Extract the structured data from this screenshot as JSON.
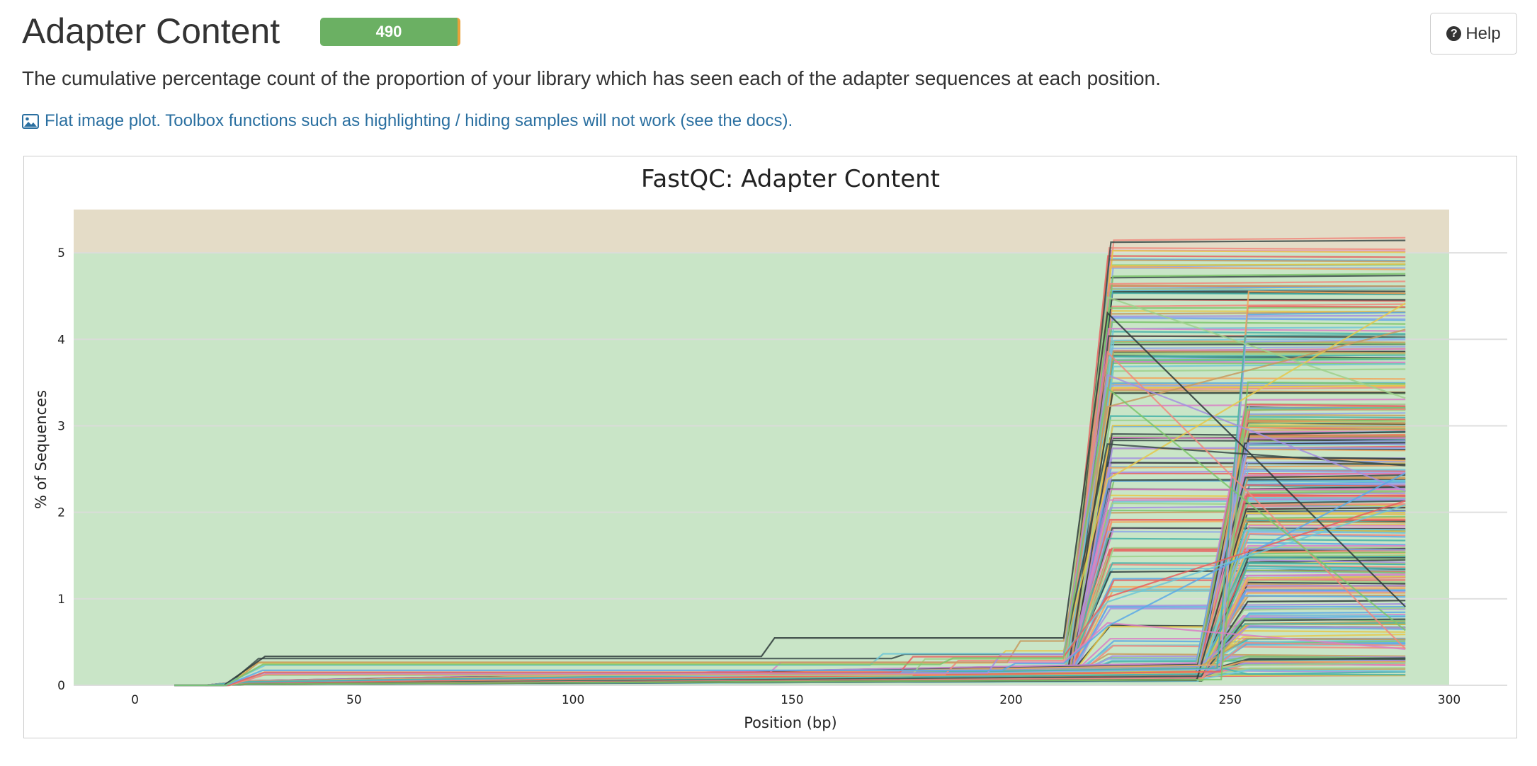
{
  "header": {
    "title": "Adapter Content",
    "badge_count": "490",
    "help_label": "Help"
  },
  "description": "The cumulative percentage count of the proportion of your library which has seen each of the adapter sequences at each position.",
  "flat_link_text": "Flat image plot. Toolbox functions such as highlighting / hiding samples will not work (see the docs).",
  "colors": {
    "accent_link": "#2a6fa0",
    "badge_green": "#6bb063",
    "badge_warn": "#e8a23a",
    "pass_zone": "#c9e5c7",
    "warn_zone": "#e4dcc7"
  },
  "chart_data": {
    "type": "line",
    "title": "FastQC: Adapter Content",
    "xlabel": "Position (bp)",
    "ylabel": "% of Sequences",
    "xlim": [
      -14,
      300
    ],
    "ylim": [
      0,
      5.5
    ],
    "xticks": [
      0,
      50,
      100,
      150,
      200,
      250,
      300
    ],
    "yticks": [
      0,
      1,
      2,
      3,
      4,
      5
    ],
    "grid": true,
    "legend": "none",
    "background_bands": [
      {
        "from": 0,
        "to": 5,
        "color": "#c9e5c7",
        "label": "pass"
      },
      {
        "from": 5,
        "to": 5.5,
        "color": "#e4dcc7",
        "label": "warn"
      }
    ],
    "series_note_count": 490,
    "series_groups": [
      {
        "rise_start": 212,
        "rise_end": 222,
        "plateau_min": 0.1,
        "plateau_max": 5.2,
        "count": 150
      },
      {
        "rise_start": 242,
        "rise_end": 253,
        "plateau_min": 0.1,
        "plateau_max": 3.3,
        "count": 180
      },
      {
        "rise_start": 246,
        "rise_end": 253,
        "plateau_min": 3.3,
        "plateau_max": 4.6,
        "count": 6
      },
      {
        "early_start": 20,
        "early_end": 28,
        "early_max": 0.35,
        "count": 12
      }
    ]
  }
}
